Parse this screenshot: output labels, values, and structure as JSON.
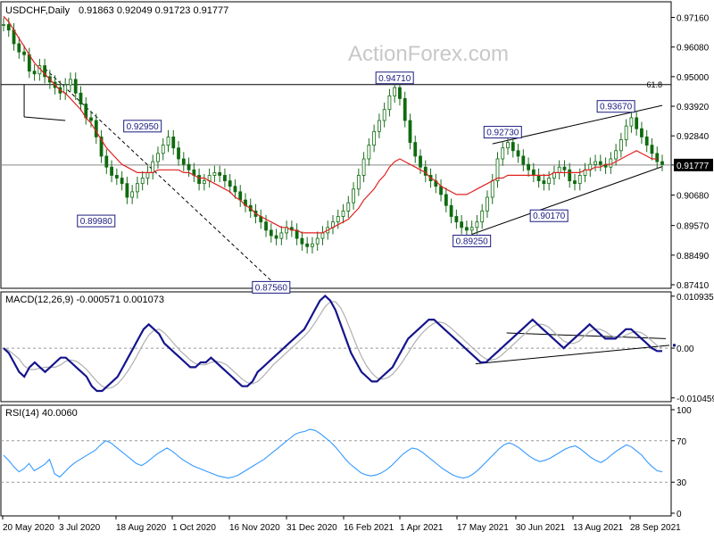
{
  "chart_data": [
    {
      "type": "line",
      "panel": "price",
      "title": "USDCHF,Daily",
      "ohlc": "0.91863 0.92049 0.91723 0.91777",
      "watermark": "ActionForex.com",
      "ylim": [
        0.8741,
        0.976
      ],
      "ylabels": [
        "0.97160",
        "0.96080",
        "0.95000",
        "0.93920",
        "0.92840",
        "0.91777",
        "0.90680",
        "0.89570",
        "0.88490",
        "0.87410"
      ],
      "current_price": "0.91777",
      "fib_level": {
        "label": "61.8",
        "value": 0.9471
      },
      "xlabels": [
        "20 May 2020",
        "3 Jul 2020",
        "18 Aug 2020",
        "1 Oct 2020",
        "16 Nov 2020",
        "31 Dec 2020",
        "16 Feb 2021",
        "1 Apr 2021",
        "17 May 2021",
        "30 Jun 2021",
        "13 Aug 2021",
        "28 Sep 2021"
      ],
      "grid": false,
      "series": [
        {
          "style": "candles",
          "close": [
            0.969,
            0.967,
            0.962,
            0.959,
            0.958,
            0.952,
            0.951,
            0.954,
            0.95,
            0.948,
            0.946,
            0.944,
            0.947,
            0.949,
            0.944,
            0.94,
            0.935,
            0.934,
            0.928,
            0.921,
            0.917,
            0.914,
            0.913,
            0.911,
            0.906,
            0.908,
            0.911,
            0.913,
            0.915,
            0.919,
            0.922,
            0.925,
            0.928,
            0.924,
            0.92,
            0.918,
            0.916,
            0.914,
            0.911,
            0.912,
            0.914,
            0.915,
            0.914,
            0.912,
            0.91,
            0.908,
            0.905,
            0.903,
            0.901,
            0.899,
            0.897,
            0.894,
            0.892,
            0.891,
            0.893,
            0.895,
            0.894,
            0.891,
            0.889,
            0.888,
            0.889,
            0.891,
            0.893,
            0.895,
            0.897,
            0.899,
            0.901,
            0.904,
            0.909,
            0.914,
            0.92,
            0.925,
            0.93,
            0.934,
            0.938,
            0.943,
            0.946,
            0.942,
            0.934,
            0.926,
            0.921,
            0.917,
            0.914,
            0.912,
            0.91,
            0.907,
            0.903,
            0.899,
            0.897,
            0.895,
            0.894,
            0.895,
            0.897,
            0.901,
            0.906,
            0.912,
            0.92,
            0.924,
            0.926,
            0.923,
            0.921,
            0.918,
            0.916,
            0.914,
            0.912,
            0.911,
            0.913,
            0.915,
            0.917,
            0.916,
            0.912,
            0.911,
            0.914,
            0.916,
            0.918,
            0.919,
            0.918,
            0.917,
            0.92,
            0.923,
            0.927,
            0.932,
            0.935,
            0.931,
            0.928,
            0.925,
            0.922,
            0.919,
            0.918
          ]
        },
        {
          "name": "",
          "color": "#e02020",
          "style": "line",
          "values": [
            0.972,
            0.97,
            0.967,
            0.964,
            0.961,
            0.958,
            0.955,
            0.953,
            0.951,
            0.949,
            0.947,
            0.945,
            0.944,
            0.942,
            0.94,
            0.938,
            0.935,
            0.933,
            0.93,
            0.927,
            0.924,
            0.922,
            0.92,
            0.918,
            0.917,
            0.916,
            0.915,
            0.915,
            0.915,
            0.915,
            0.916,
            0.916,
            0.916,
            0.916,
            0.916,
            0.915,
            0.915,
            0.914,
            0.913,
            0.913,
            0.912,
            0.911,
            0.91,
            0.909,
            0.908,
            0.906,
            0.905,
            0.903,
            0.902,
            0.9,
            0.899,
            0.898,
            0.897,
            0.896,
            0.895,
            0.895,
            0.894,
            0.894,
            0.893,
            0.893,
            0.893,
            0.893,
            0.893,
            0.894,
            0.895,
            0.896,
            0.897,
            0.898,
            0.9,
            0.902,
            0.905,
            0.907,
            0.909,
            0.912,
            0.914,
            0.917,
            0.919,
            0.92,
            0.919,
            0.918,
            0.917,
            0.916,
            0.915,
            0.913,
            0.912,
            0.91,
            0.909,
            0.908,
            0.907,
            0.907,
            0.907,
            0.908,
            0.909,
            0.91,
            0.911,
            0.912,
            0.913,
            0.913,
            0.914,
            0.914,
            0.914,
            0.914,
            0.914,
            0.914,
            0.914,
            0.914,
            0.914,
            0.915,
            0.915,
            0.915,
            0.915,
            0.915,
            0.915,
            0.916,
            0.916,
            0.917,
            0.917,
            0.918,
            0.918,
            0.919,
            0.92,
            0.921,
            0.922,
            0.923,
            0.922,
            0.921,
            0.92,
            0.92
          ]
        }
      ],
      "annotations": [
        {
          "text": "0.92950",
          "i": 27,
          "value": 0.9295
        },
        {
          "text": "0.89980",
          "i": 18,
          "value": 0.8998
        },
        {
          "text": "0.87560",
          "i": 52,
          "value": 0.8756
        },
        {
          "text": "0.94710",
          "i": 76,
          "value": 0.9471
        },
        {
          "text": "0.92730",
          "i": 97,
          "value": 0.9273
        },
        {
          "text": "0.89250",
          "i": 91,
          "value": 0.8925
        },
        {
          "text": "0.90170",
          "i": 106,
          "value": 0.9017
        },
        {
          "text": "0.93670",
          "i": 119,
          "value": 0.9367
        }
      ]
    },
    {
      "type": "line",
      "panel": "macd",
      "title": "MACD(12,26,9) -0.000571 0.001073",
      "ylim": [
        -0.0105,
        0.0109
      ],
      "ylabels": [
        "0.010935",
        "0.00",
        "-0.010459"
      ],
      "grid": false,
      "series": [
        {
          "style": "line",
          "color": "#14148c",
          "values": [
            0.0,
            -0.001,
            -0.003,
            -0.005,
            -0.006,
            -0.004,
            -0.003,
            -0.004,
            -0.005,
            -0.004,
            -0.003,
            -0.002,
            -0.002,
            -0.003,
            -0.004,
            -0.005,
            -0.006,
            -0.008,
            -0.009,
            -0.009,
            -0.008,
            -0.007,
            -0.006,
            -0.004,
            -0.002,
            0.0,
            0.002,
            0.004,
            0.005,
            0.004,
            0.003,
            0.001,
            0.0,
            -0.001,
            -0.002,
            -0.003,
            -0.004,
            -0.004,
            -0.003,
            -0.003,
            -0.002,
            -0.003,
            -0.004,
            -0.005,
            -0.006,
            -0.007,
            -0.008,
            -0.008,
            -0.007,
            -0.005,
            -0.004,
            -0.003,
            -0.002,
            -0.001,
            0.0,
            0.001,
            0.002,
            0.003,
            0.004,
            0.006,
            0.008,
            0.01,
            0.011,
            0.01,
            0.008,
            0.005,
            0.002,
            -0.001,
            -0.003,
            -0.005,
            -0.006,
            -0.007,
            -0.007,
            -0.006,
            -0.005,
            -0.004,
            -0.002,
            0.0,
            0.002,
            0.003,
            0.004,
            0.005,
            0.006,
            0.006,
            0.005,
            0.004,
            0.003,
            0.002,
            0.001,
            0.0,
            -0.001,
            -0.002,
            -0.003,
            -0.003,
            -0.002,
            -0.001,
            0.0,
            0.001,
            0.002,
            0.003,
            0.004,
            0.005,
            0.006,
            0.005,
            0.004,
            0.003,
            0.002,
            0.001,
            0.0,
            0.001,
            0.002,
            0.003,
            0.004,
            0.005,
            0.004,
            0.003,
            0.002,
            0.002,
            0.002,
            0.003,
            0.004,
            0.004,
            0.003,
            0.002,
            0.001,
            0.0,
            -0.0006,
            -0.0006
          ]
        }
      ]
    },
    {
      "type": "line",
      "panel": "rsi",
      "title": "RSI(14) 40.0060",
      "ylim": [
        0,
        100
      ],
      "ylabels": [
        "100",
        "70",
        "30",
        "0"
      ],
      "reference_lines": [
        70,
        30
      ],
      "grid": false,
      "series": [
        {
          "style": "line",
          "color": "#3399ff",
          "values": [
            56,
            51,
            45,
            40,
            43,
            48,
            41,
            44,
            47,
            52,
            38,
            35,
            40,
            45,
            49,
            52,
            55,
            58,
            61,
            66,
            70,
            68,
            64,
            60,
            56,
            52,
            48,
            46,
            49,
            53,
            57,
            60,
            63,
            60,
            56,
            52,
            49,
            46,
            44,
            42,
            40,
            38,
            36,
            35,
            34,
            35,
            37,
            40,
            43,
            46,
            49,
            52,
            56,
            60,
            64,
            68,
            72,
            76,
            78,
            79,
            81,
            80,
            77,
            73,
            69,
            64,
            58,
            52,
            47,
            43,
            39,
            37,
            36,
            37,
            39,
            42,
            46,
            51,
            56,
            60,
            63,
            62,
            59,
            55,
            51,
            47,
            43,
            40,
            37,
            35,
            34,
            35,
            38,
            42,
            47,
            52,
            57,
            62,
            66,
            68,
            66,
            63,
            59,
            55,
            52,
            50,
            51,
            53,
            56,
            59,
            62,
            64,
            65,
            62,
            58,
            54,
            51,
            49,
            52,
            56,
            60,
            63,
            66,
            64,
            60,
            56,
            50,
            45,
            41,
            40
          ]
        }
      ]
    }
  ]
}
